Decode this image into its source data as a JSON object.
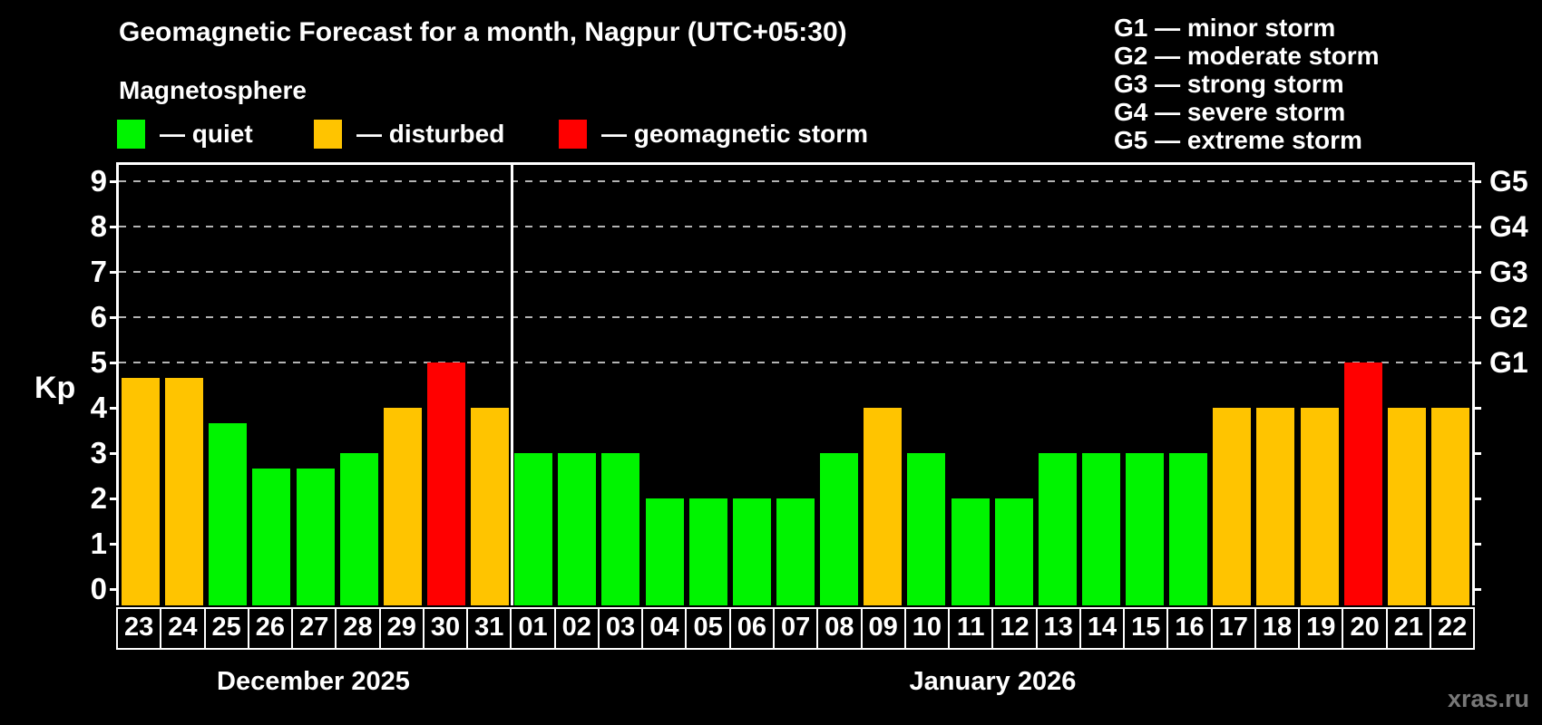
{
  "title": "Geomagnetic Forecast for a month, Nagpur (UTC+05:30)",
  "subtitle": "Magnetosphere",
  "legend": {
    "items": [
      {
        "status": "quiet",
        "label": "— quiet",
        "color": "#00f400",
        "x": 129
      },
      {
        "status": "disturbed",
        "label": "— disturbed",
        "color": "#ffc400",
        "x": 346
      },
      {
        "status": "storm",
        "label": "— geomagnetic storm",
        "color": "#ff0000",
        "x": 616
      }
    ]
  },
  "g_legend": {
    "lines": [
      "G1 — minor storm",
      "G2 — moderate storm",
      "G3 — strong storm",
      "G4 — severe storm",
      "G5 — extreme storm"
    ]
  },
  "axis": {
    "y_title": "Kp",
    "kp_ticks": [
      0,
      1,
      2,
      3,
      4,
      5,
      6,
      7,
      8,
      9
    ],
    "g_labels": [
      {
        "kp": 5,
        "text": "G1"
      },
      {
        "kp": 6,
        "text": "G2"
      },
      {
        "kp": 7,
        "text": "G3"
      },
      {
        "kp": 8,
        "text": "G4"
      },
      {
        "kp": 9,
        "text": "G5"
      }
    ]
  },
  "watermark": "xras.ru",
  "chart_data": {
    "type": "bar",
    "title": "Geomagnetic Forecast for a month, Nagpur (UTC+05:30)",
    "subtitle": "Magnetosphere",
    "xlabel": "",
    "ylabel": "Kp",
    "ylim": [
      0,
      9
    ],
    "grid": "horizontal dashed lines at Kp 5-9 only",
    "gridlines_at": [
      5,
      6,
      7,
      8,
      9
    ],
    "legend_position": "top-left",
    "categories": [
      "23",
      "24",
      "25",
      "26",
      "27",
      "28",
      "29",
      "30",
      "31",
      "01",
      "02",
      "03",
      "04",
      "05",
      "06",
      "07",
      "08",
      "09",
      "10",
      "11",
      "12",
      "13",
      "14",
      "15",
      "16",
      "17",
      "18",
      "19",
      "20",
      "21",
      "22"
    ],
    "values": [
      4.67,
      4.67,
      3.67,
      2.67,
      2.67,
      3,
      4,
      5,
      4,
      3,
      3,
      3,
      2,
      2,
      2,
      2,
      3,
      4,
      3,
      2,
      2,
      3,
      3,
      3,
      3,
      4,
      4,
      4,
      5,
      4,
      4
    ],
    "statuses": [
      "disturbed",
      "disturbed",
      "quiet",
      "quiet",
      "quiet",
      "quiet",
      "disturbed",
      "storm",
      "disturbed",
      "quiet",
      "quiet",
      "quiet",
      "quiet",
      "quiet",
      "quiet",
      "quiet",
      "quiet",
      "disturbed",
      "quiet",
      "quiet",
      "quiet",
      "quiet",
      "quiet",
      "quiet",
      "quiet",
      "disturbed",
      "disturbed",
      "disturbed",
      "storm",
      "disturbed",
      "disturbed"
    ],
    "colors_by_status": {
      "quiet": "#00f400",
      "disturbed": "#ffc400",
      "storm": "#ff0000"
    },
    "months": [
      {
        "label": "December 2025",
        "days": 9
      },
      {
        "label": "January 2026",
        "days": 22
      }
    ]
  }
}
